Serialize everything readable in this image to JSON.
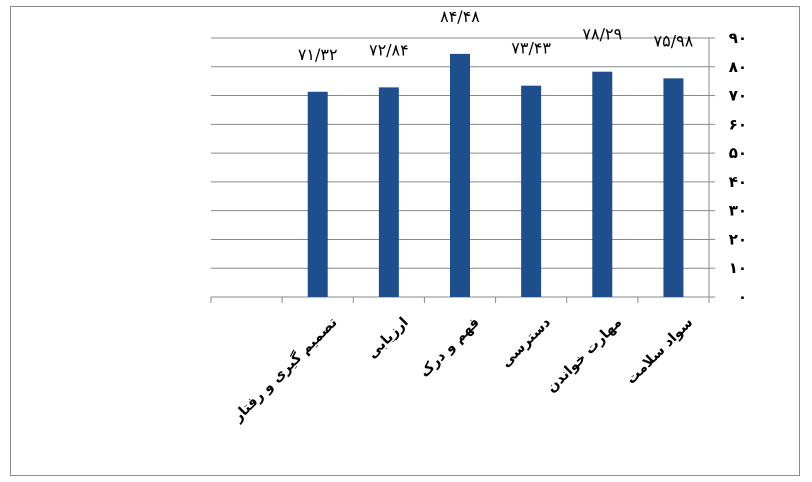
{
  "chart_data": {
    "type": "bar",
    "categories": [
      "تصمیم گیری و رفتار",
      "ارزیابی",
      "فهم و درک",
      "دسترسی",
      "مهارت خواندن",
      "سواد سلامت"
    ],
    "values": [
      71.32,
      72.84,
      84.48,
      73.43,
      78.29,
      75.98
    ],
    "data_labels": [
      "۷۱/۳۲",
      "۷۲/۸۴",
      "۸۴/۴۸",
      "۷۳/۴۳",
      "۷۸/۲۹",
      "۷۵/۹۸"
    ],
    "y_ticks": [
      0,
      10,
      20,
      30,
      40,
      50,
      60,
      70,
      80,
      90
    ],
    "y_tick_labels": [
      "۰",
      "۱۰",
      "۲۰",
      "۳۰",
      "۴۰",
      "۵۰",
      "۶۰",
      "۷۰",
      "۸۰",
      "۹۰"
    ],
    "ylim": [
      0,
      90
    ],
    "y_axis_side": "right",
    "grid": true,
    "title": "",
    "xlabel": "",
    "ylabel": "",
    "colors": {
      "bar": "#1f4e8c",
      "grid": "#8a8a8a"
    }
  }
}
